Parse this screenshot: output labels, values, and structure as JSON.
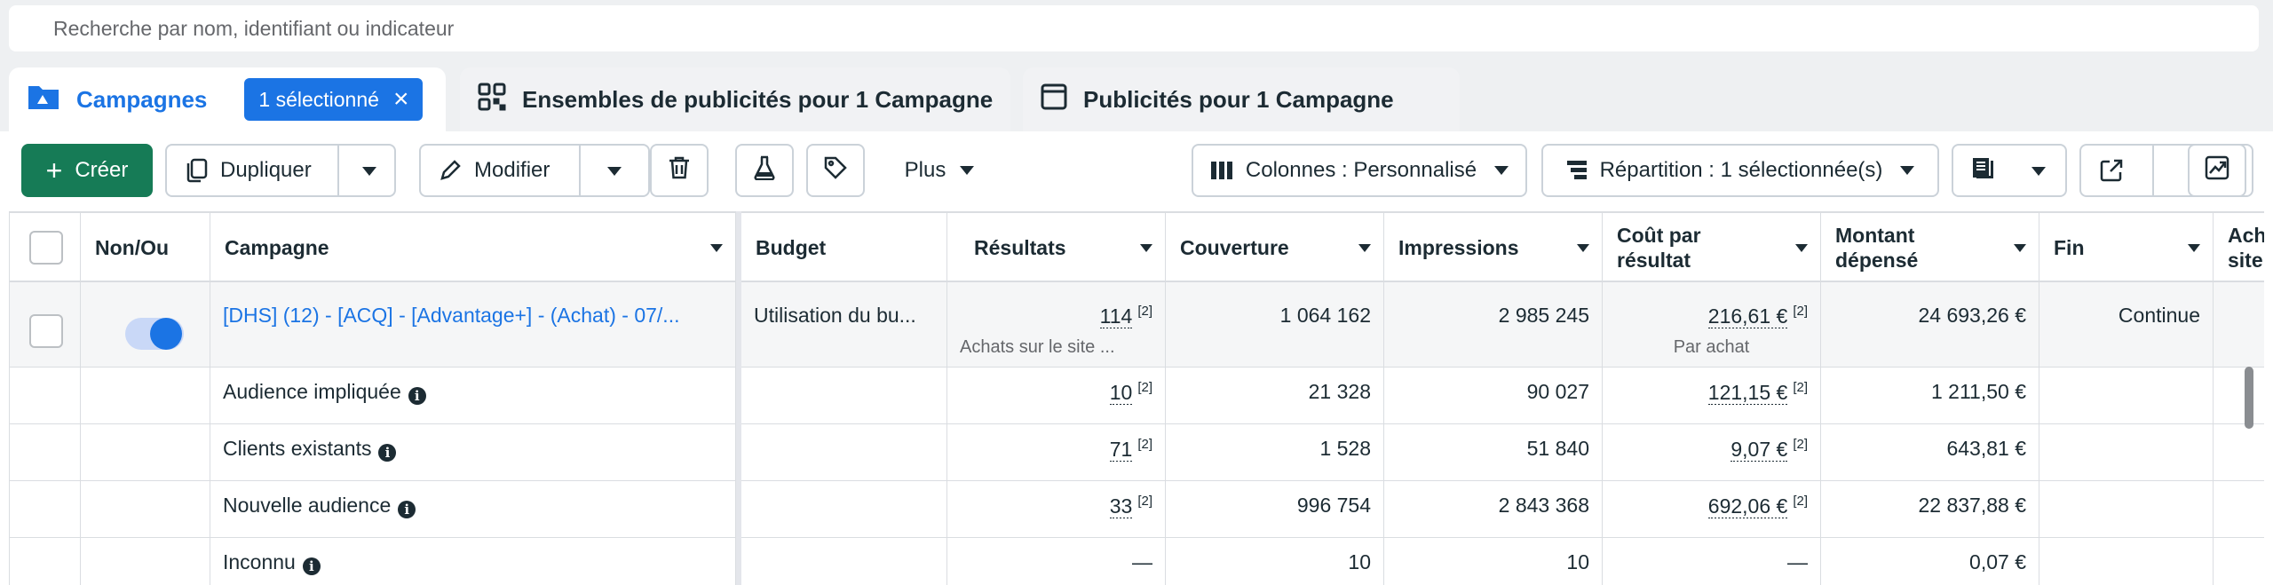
{
  "search": {
    "placeholder": "Recherche par nom, identifiant ou indicateur"
  },
  "tabs": [
    {
      "label": "Campagnes",
      "icon": "folder-icon",
      "selected_badge": "1 sélectionné"
    },
    {
      "label": "Ensembles de publicités pour 1 Campagne",
      "icon": "grid-icon"
    },
    {
      "label": "Publicités pour 1 Campagne",
      "icon": "ad-icon"
    }
  ],
  "toolbar": {
    "create": "Créer",
    "duplicate": "Dupliquer",
    "edit": "Modifier",
    "more": "Plus",
    "columns": "Colonnes : Personnalisé",
    "breakdown": "Répartition : 1 sélectionnée(s)"
  },
  "table": {
    "headers": {
      "toggle": "Non/Ou",
      "campaign": "Campagne",
      "budget": "Budget",
      "results": "Résultats",
      "reach": "Couverture",
      "impressions": "Impressions",
      "cost_per_result_1": "Coût par",
      "cost_per_result_2": "résultat",
      "amount_spent_1": "Montant",
      "amount_spent_2": "dépensé",
      "end": "Fin",
      "next_1": "Ach",
      "next_2": "site"
    },
    "main_row": {
      "campaign": "[DHS] (12) - [ACQ] - [Advantage+] - (Achat) - 07/...",
      "budget": "Utilisation du bu...",
      "results": "114",
      "results_sub": "Achats sur le site ...",
      "reach": "1 064 162",
      "impressions": "2 985 245",
      "cost_per_result": "216,61 €",
      "cost_per_result_sub": "Par achat",
      "amount_spent": "24 693,26 €",
      "end": "Continue",
      "footnote": "[2]"
    },
    "breakdown_rows": [
      {
        "label": "Audience impliquée",
        "results": "10",
        "reach": "21 328",
        "impressions": "90 027",
        "cost": "121,15 €",
        "spent": "1 211,50 €",
        "footnote": "[2]"
      },
      {
        "label": "Clients existants",
        "results": "71",
        "reach": "1 528",
        "impressions": "51 840",
        "cost": "9,07 €",
        "spent": "643,81 €",
        "footnote": "[2]"
      },
      {
        "label": "Nouvelle audience",
        "results": "33",
        "reach": "996 754",
        "impressions": "2 843 368",
        "cost": "692,06 €",
        "spent": "22 837,88 €",
        "footnote": "[2]"
      },
      {
        "label": "Inconnu",
        "results": "—",
        "reach": "10",
        "impressions": "10",
        "cost": "—",
        "spent": "0,07 €"
      }
    ]
  },
  "colors": {
    "accent": "#1b74e4",
    "create_button": "#167b56"
  }
}
